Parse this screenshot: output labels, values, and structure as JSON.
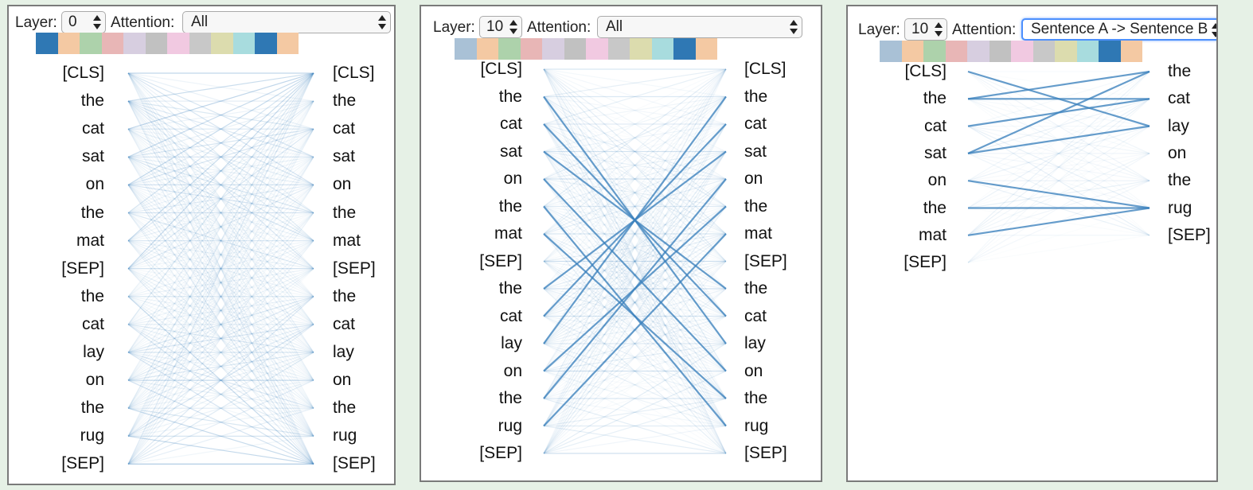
{
  "common": {
    "layer_label": "Layer:",
    "attention_label": "Attention:",
    "colors": {
      "line": "#3a80bd",
      "heads": [
        "#a9c1d6",
        "#f4c9a3",
        "#add2ab",
        "#e8b6b6",
        "#d7cee0",
        "#c1c1c1",
        "#f1c9e1",
        "#c8c8c8",
        "#dcdcae",
        "#a8dcde",
        "#2f78b4",
        "#f4c9a3"
      ]
    }
  },
  "panels": [
    {
      "layer_value": "0",
      "attention_value": "All",
      "selected_head": 0,
      "left_tokens": [
        "[CLS]",
        "the",
        "cat",
        "sat",
        "on",
        "the",
        "mat",
        "[SEP]",
        "the",
        "cat",
        "lay",
        "on",
        "the",
        "rug",
        "[SEP]"
      ],
      "right_tokens": [
        "[CLS]",
        "the",
        "cat",
        "sat",
        "on",
        "the",
        "mat",
        "[SEP]",
        "the",
        "cat",
        "lay",
        "on",
        "the",
        "rug",
        "[SEP]"
      ]
    },
    {
      "layer_value": "10",
      "attention_value": "All",
      "selected_head": 10,
      "left_tokens": [
        "[CLS]",
        "the",
        "cat",
        "sat",
        "on",
        "the",
        "mat",
        "[SEP]",
        "the",
        "cat",
        "lay",
        "on",
        "the",
        "rug",
        "[SEP]"
      ],
      "right_tokens": [
        "[CLS]",
        "the",
        "cat",
        "sat",
        "on",
        "the",
        "mat",
        "[SEP]",
        "the",
        "cat",
        "lay",
        "on",
        "the",
        "rug",
        "[SEP]"
      ]
    },
    {
      "layer_value": "10",
      "attention_value": "Sentence A -> Sentence B",
      "selected_head": 10,
      "left_tokens": [
        "[CLS]",
        "the",
        "cat",
        "sat",
        "on",
        "the",
        "mat",
        "[SEP]"
      ],
      "right_tokens": [
        "the",
        "cat",
        "lay",
        "on",
        "the",
        "rug",
        "[SEP]"
      ]
    }
  ]
}
